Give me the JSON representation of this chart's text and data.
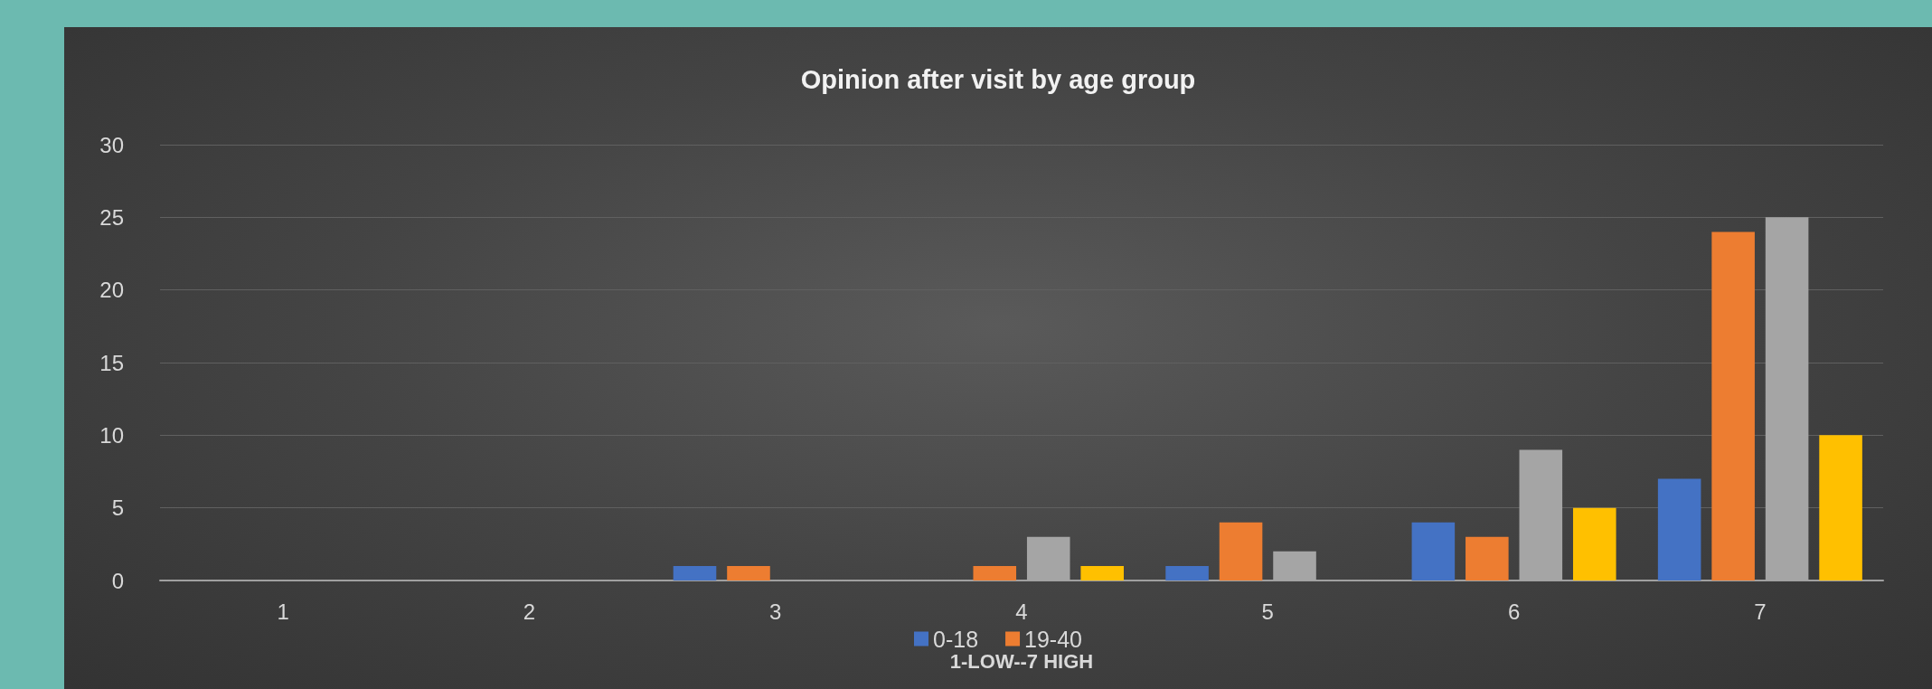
{
  "chart_data": {
    "type": "bar",
    "title": "Opinion after visit by age group",
    "xlabel": "1-LOW--7 HIGH",
    "categories": [
      "1",
      "2",
      "3",
      "4",
      "5",
      "6",
      "7"
    ],
    "series": [
      {
        "name": "0-18",
        "color": "#4472c4",
        "values": [
          0,
          0,
          1,
          0,
          1,
          4,
          7
        ]
      },
      {
        "name": "19-40",
        "color": "#ed7d31",
        "values": [
          0,
          0,
          1,
          1,
          4,
          3,
          24
        ]
      },
      {
        "color": "#a5a5a5",
        "values": [
          0,
          0,
          0,
          3,
          2,
          9,
          25
        ]
      },
      {
        "color": "#ffc000",
        "values": [
          0,
          0,
          0,
          1,
          0,
          5,
          10
        ]
      }
    ],
    "ylim": [
      0,
      30
    ],
    "yticks": [
      0,
      5,
      10,
      15,
      20,
      25,
      30
    ],
    "grid": "y",
    "legend": "bottom"
  }
}
